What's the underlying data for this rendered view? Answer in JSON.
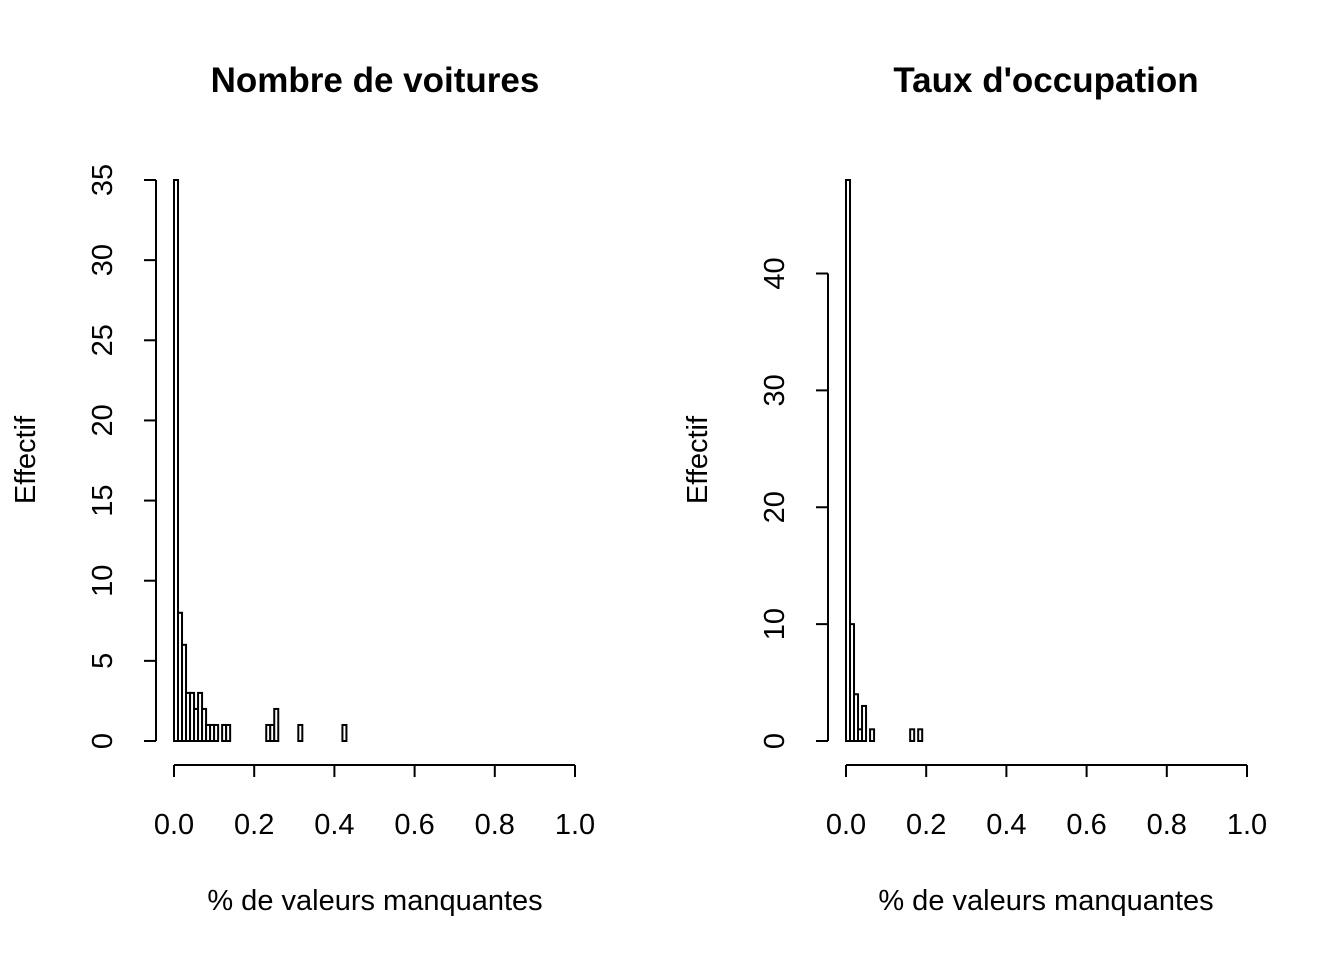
{
  "chart_data": [
    {
      "type": "bar",
      "title": "Nombre de voitures",
      "xlabel": "% de valeurs manquantes",
      "ylabel": "Effectif",
      "xlim": [
        0,
        1
      ],
      "ylim": [
        0,
        35
      ],
      "x_ticks": [
        "0.0",
        "0.2",
        "0.4",
        "0.6",
        "0.8",
        "1.0"
      ],
      "y_ticks": [
        "0",
        "5",
        "10",
        "15",
        "20",
        "25",
        "30",
        "35"
      ],
      "bin_width": 0.01,
      "bins": [
        {
          "x": 0.0,
          "count": 35
        },
        {
          "x": 0.01,
          "count": 8
        },
        {
          "x": 0.02,
          "count": 6
        },
        {
          "x": 0.03,
          "count": 3
        },
        {
          "x": 0.04,
          "count": 3
        },
        {
          "x": 0.05,
          "count": 2
        },
        {
          "x": 0.06,
          "count": 3
        },
        {
          "x": 0.07,
          "count": 2
        },
        {
          "x": 0.08,
          "count": 1
        },
        {
          "x": 0.09,
          "count": 1
        },
        {
          "x": 0.1,
          "count": 1
        },
        {
          "x": 0.12,
          "count": 1
        },
        {
          "x": 0.13,
          "count": 1
        },
        {
          "x": 0.23,
          "count": 1
        },
        {
          "x": 0.24,
          "count": 1
        },
        {
          "x": 0.25,
          "count": 2
        },
        {
          "x": 0.31,
          "count": 1
        },
        {
          "x": 0.42,
          "count": 1
        }
      ]
    },
    {
      "type": "bar",
      "title": "Taux d'occupation",
      "xlabel": "% de valeurs manquantes",
      "ylabel": "Effectif",
      "xlim": [
        0,
        1
      ],
      "ylim": [
        0,
        48
      ],
      "x_ticks": [
        "0.0",
        "0.2",
        "0.4",
        "0.6",
        "0.8",
        "1.0"
      ],
      "y_ticks": [
        "0",
        "10",
        "20",
        "30",
        "40"
      ],
      "bin_width": 0.01,
      "bins": [
        {
          "x": 0.0,
          "count": 48
        },
        {
          "x": 0.01,
          "count": 10
        },
        {
          "x": 0.02,
          "count": 4
        },
        {
          "x": 0.03,
          "count": 1
        },
        {
          "x": 0.04,
          "count": 3
        },
        {
          "x": 0.06,
          "count": 1
        },
        {
          "x": 0.16,
          "count": 1
        },
        {
          "x": 0.18,
          "count": 1
        }
      ]
    }
  ]
}
